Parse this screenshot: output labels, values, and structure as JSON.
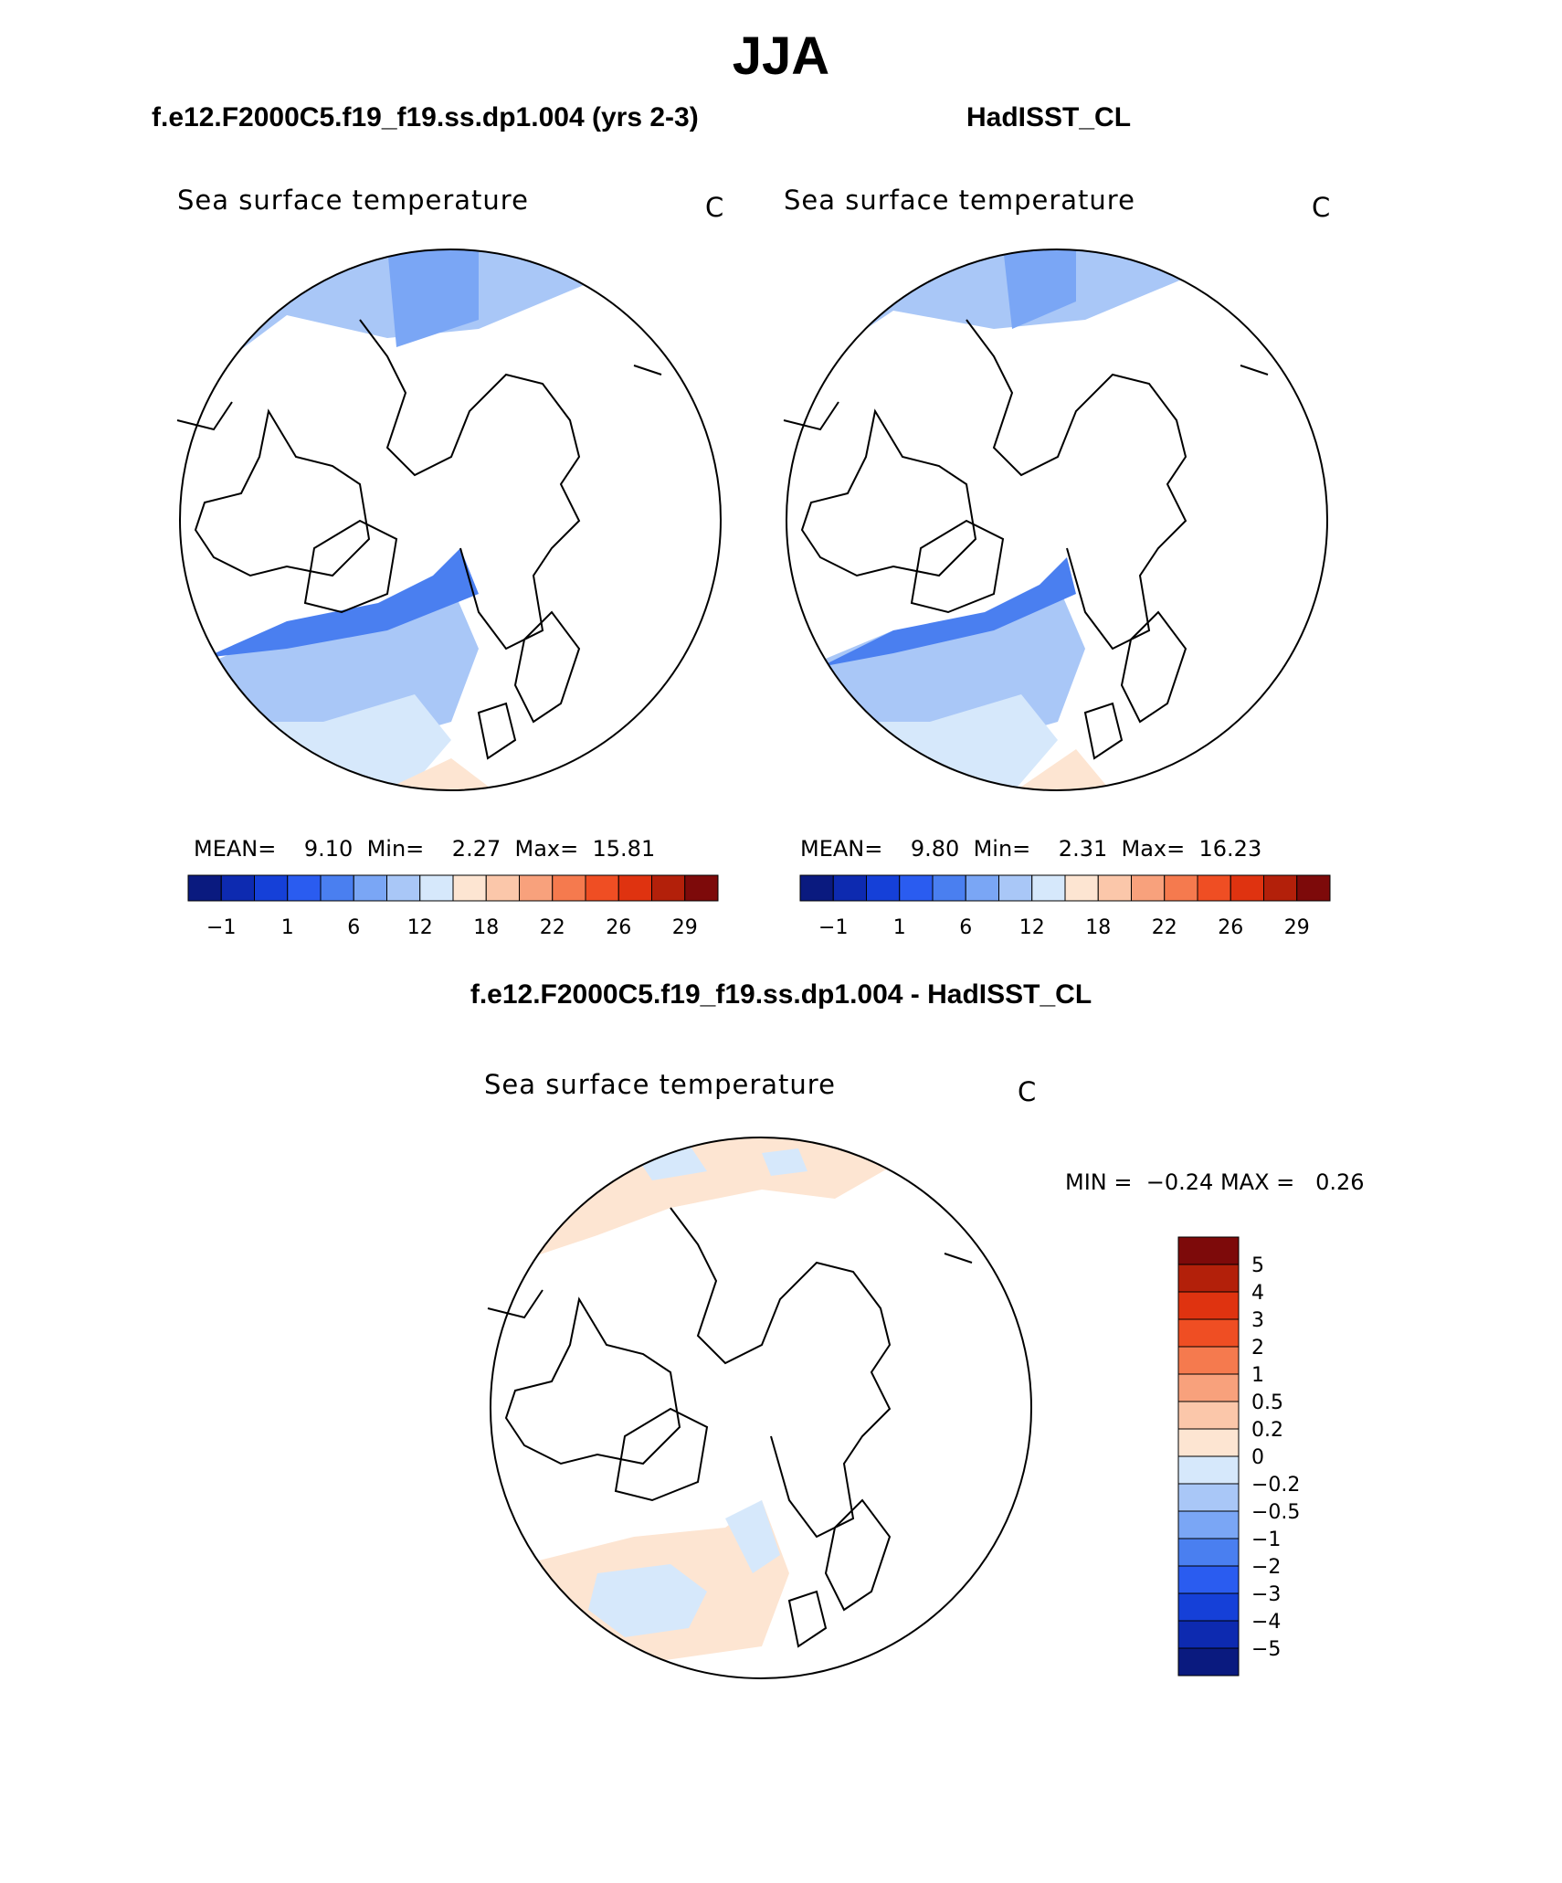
{
  "page_title": "JJA",
  "panels": [
    {
      "title": "f.e12.F2000C5.f19_f19.ss.dp1.004 (yrs 2-3)",
      "label": "Sea surface temperature",
      "units": "C",
      "mean_label": "MEAN=",
      "mean_value": "9.10",
      "min_label": "Min=",
      "min_value": "2.27",
      "max_label": "Max=",
      "max_value": "15.81"
    },
    {
      "title": "HadISST_CL",
      "label": "Sea surface temperature",
      "units": "C",
      "mean_label": "MEAN=",
      "mean_value": "9.80",
      "min_label": "Min=",
      "min_value": "2.31",
      "max_label": "Max=",
      "max_value": "16.23"
    }
  ],
  "abs_colorbar": {
    "colors": [
      "#0a1a7f",
      "#0d2ab0",
      "#1540d8",
      "#2a5cf0",
      "#4a7ff0",
      "#7aa6f5",
      "#a9c7f7",
      "#d6e8fb",
      "#fde5d2",
      "#fbc7aa",
      "#f8a17c",
      "#f57a4e",
      "#ef4e23",
      "#df3310",
      "#b3200a",
      "#7d0a0a"
    ],
    "tick_labels": [
      "−1",
      "1",
      "6",
      "12",
      "18",
      "22",
      "26",
      "29"
    ]
  },
  "difference": {
    "title": "f.e12.F2000C5.f19_f19.ss.dp1.004 - HadISST_CL",
    "label": "Sea surface temperature",
    "units": "C",
    "min_label": "MIN =",
    "min_value": "−0.24",
    "max_label": "MAX =",
    "max_value": "0.26"
  },
  "diff_colorbar": {
    "colors": [
      "#7d0a0a",
      "#b3200a",
      "#df3310",
      "#ef4e23",
      "#f57a4e",
      "#f8a17c",
      "#fbc7aa",
      "#fde5d2",
      "#d6e8fb",
      "#a9c7f7",
      "#7aa6f5",
      "#4a7ff0",
      "#2a5cf0",
      "#1540d8",
      "#0d2ab0",
      "#0a1a7f"
    ],
    "tick_labels": [
      "5",
      "4",
      "3",
      "2",
      "1",
      "0.5",
      "0.2",
      "0",
      "−0.2",
      "−0.5",
      "−1",
      "−2",
      "−3",
      "−4",
      "−5"
    ]
  },
  "colors": {
    "water_deep": "#4a7ff0",
    "water_mid": "#7aa6f5",
    "water_light": "#a9c7f7",
    "water_pale": "#d6e8fb",
    "water_warm": "#fde5d2",
    "coastline": "#000000"
  }
}
